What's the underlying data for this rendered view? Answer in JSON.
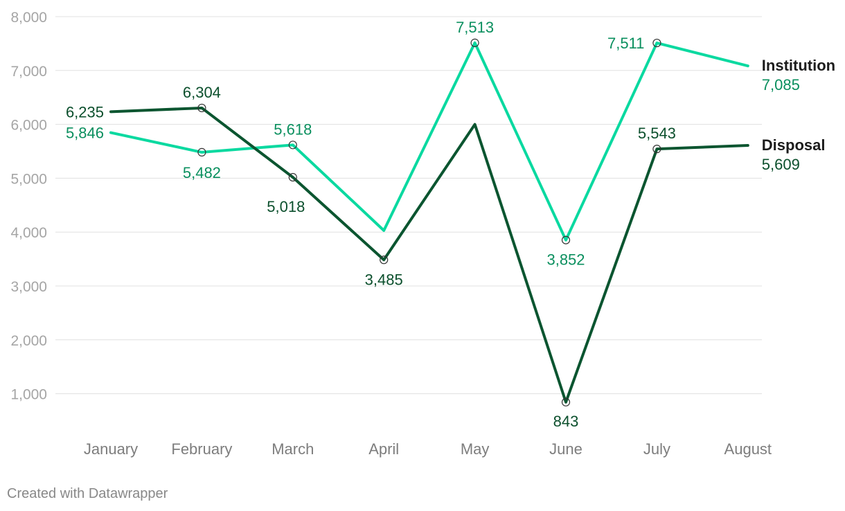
{
  "chart_data": {
    "type": "line",
    "categories": [
      "January",
      "February",
      "March",
      "April",
      "May",
      "June",
      "July",
      "August"
    ],
    "ylim": [
      0,
      8000
    ],
    "yticks": [
      1000,
      2000,
      3000,
      4000,
      5000,
      6000,
      7000,
      8000
    ],
    "ytick_labels": [
      "1,000",
      "2,000",
      "3,000",
      "4,000",
      "5,000",
      "6,000",
      "7,000",
      "8,000"
    ],
    "grid": true,
    "legend": "direct labels at right end of lines",
    "series": [
      {
        "name": "Institution",
        "color": "#0ad9a0",
        "label_color": "#0a8f5e",
        "values": [
          5846,
          5482,
          5618,
          4030,
          7513,
          3852,
          7511,
          7085
        ],
        "labels": [
          "5,846",
          "5,482",
          "5,618",
          null,
          "7,513",
          "3,852",
          "7,511",
          "7,085"
        ],
        "markers": [
          false,
          true,
          true,
          false,
          true,
          true,
          true,
          false
        ]
      },
      {
        "name": "Disposal",
        "color": "#0b5530",
        "label_color": "#0b4f2c",
        "values": [
          6235,
          6304,
          5018,
          3485,
          6000,
          843,
          5543,
          5609
        ],
        "labels": [
          "6,235",
          "6,304",
          "5,018",
          "3,485",
          null,
          "843",
          "5,543",
          "5,609"
        ],
        "markers": [
          false,
          true,
          true,
          true,
          false,
          true,
          true,
          false
        ]
      }
    ]
  },
  "footer": "Created with Datawrapper"
}
